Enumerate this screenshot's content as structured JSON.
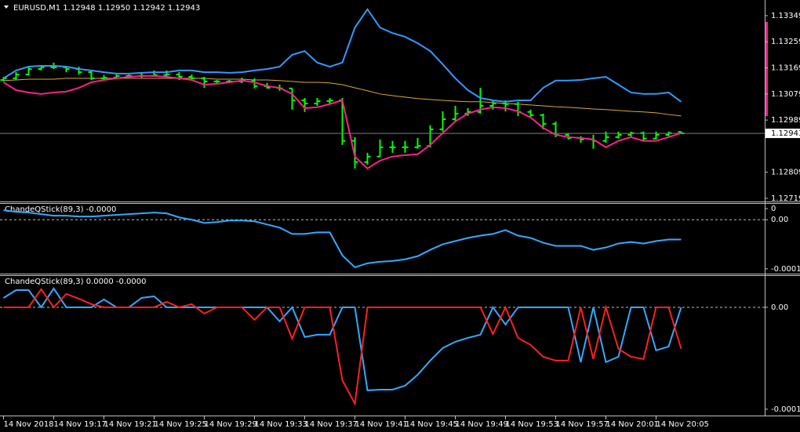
{
  "chart_data": [
    {
      "type": "ohlc",
      "title": "EURUSD,M1  1.12948 1.12950 1.12942 1.12943",
      "categories": [
        "14 Nov 2018",
        null,
        null,
        null,
        "14 Nov 19:17",
        null,
        null,
        null,
        "14 Nov 19:21",
        null,
        null,
        null,
        "14 Nov 19:25",
        null,
        null,
        null,
        "14 Nov 19:29",
        null,
        null,
        null,
        "14 Nov 19:33",
        null,
        null,
        null,
        "14 Nov 19:37",
        null,
        null,
        null,
        "14 Nov 19:41",
        null,
        null,
        null,
        "14 Nov 19:45",
        null,
        null,
        null,
        "14 Nov 19:49",
        null,
        null,
        null,
        "14 Nov 19:53",
        null,
        null,
        null,
        "14 Nov 19:57",
        null,
        null,
        null,
        "14 Nov 20:01",
        null,
        null,
        null,
        "14 Nov 20:05",
        null,
        null
      ],
      "open": [
        1.13127,
        1.13133,
        1.13146,
        1.13165,
        1.13171,
        1.13171,
        1.13165,
        1.13154,
        1.13133,
        1.13135,
        1.13141,
        1.13141,
        1.13141,
        1.13144,
        1.13146,
        1.13138,
        1.13133,
        1.13122,
        1.13122,
        1.13122,
        1.13125,
        1.13106,
        1.131,
        1.13098,
        1.13057,
        1.13046,
        1.13054,
        1.13057,
        1.12917,
        1.12844,
        1.12863,
        1.12895,
        1.12895,
        1.12895,
        1.129,
        1.12957,
        1.12992,
        1.13011,
        1.13017,
        1.13038,
        1.13046,
        1.13044,
        1.13017,
        1.13006,
        1.12976,
        1.12938,
        1.12927,
        1.12922,
        1.12917,
        1.1293,
        1.12938,
        1.12944,
        1.12925,
        1.12938,
        1.12948
      ],
      "high": [
        1.13138,
        1.13154,
        1.13173,
        1.13173,
        1.13187,
        1.13173,
        1.13173,
        1.1316,
        1.13144,
        1.13146,
        1.13146,
        1.13154,
        1.1316,
        1.1316,
        1.13154,
        1.13146,
        1.13138,
        1.13127,
        1.13127,
        1.13135,
        1.13133,
        1.13117,
        1.13111,
        1.13098,
        1.13065,
        1.13065,
        1.13065,
        1.13065,
        1.1293,
        1.12876,
        1.12922,
        1.12917,
        1.12917,
        1.12927,
        1.12971,
        1.13019,
        1.13038,
        1.1303,
        1.131,
        1.13057,
        1.13057,
        1.13052,
        1.13025,
        1.13011,
        1.12984,
        1.12944,
        1.12933,
        1.12938,
        1.12949,
        1.12949,
        1.12949,
        1.12949,
        1.12949,
        1.12949,
        1.1295
      ],
      "low": [
        1.13122,
        1.13127,
        1.13144,
        1.1316,
        1.13165,
        1.13154,
        1.13146,
        1.13127,
        1.13127,
        1.13133,
        1.13135,
        1.13135,
        1.13138,
        1.13138,
        1.13127,
        1.13125,
        1.131,
        1.13117,
        1.13117,
        1.13117,
        1.13098,
        1.13098,
        1.1309,
        1.13025,
        1.13017,
        1.13038,
        1.13044,
        1.12903,
        1.12822,
        1.12835,
        1.12863,
        1.12876,
        1.12876,
        1.1289,
        1.12895,
        1.12949,
        1.12984,
        1.13003,
        1.13011,
        1.13025,
        1.13019,
        1.13003,
        1.12998,
        1.12957,
        1.1293,
        1.12922,
        1.12911,
        1.1289,
        1.12911,
        1.12925,
        1.1293,
        1.12917,
        1.12922,
        1.12933,
        1.12942
      ],
      "close": [
        1.13133,
        1.13146,
        1.13165,
        1.13171,
        1.13171,
        1.13165,
        1.13154,
        1.13133,
        1.13135,
        1.13141,
        1.13141,
        1.13141,
        1.13144,
        1.13146,
        1.13138,
        1.13133,
        1.13122,
        1.13122,
        1.13122,
        1.13125,
        1.13106,
        1.131,
        1.13098,
        1.13057,
        1.13046,
        1.13054,
        1.13057,
        1.12917,
        1.12844,
        1.12863,
        1.12895,
        1.12895,
        1.12895,
        1.129,
        1.12957,
        1.12992,
        1.13011,
        1.13017,
        1.13038,
        1.13046,
        1.13044,
        1.13017,
        1.13006,
        1.12976,
        1.12938,
        1.12927,
        1.12922,
        1.12917,
        1.1293,
        1.12938,
        1.12944,
        1.12925,
        1.12938,
        1.12944,
        1.12943
      ],
      "color": "#00ff00",
      "series": [
        {
          "color": "#d9a93a",
          "values": [
            1.13125,
            1.13127,
            1.1313,
            1.1313,
            1.1313,
            1.13133,
            1.13133,
            1.13133,
            1.13133,
            1.13133,
            1.13133,
            1.13133,
            1.13133,
            1.13133,
            1.13133,
            1.13133,
            1.13133,
            1.1313,
            1.1313,
            1.1313,
            1.13127,
            1.13127,
            1.13125,
            1.13122,
            1.13119,
            1.13119,
            1.13117,
            1.13111,
            1.131,
            1.1309,
            1.13079,
            1.13073,
            1.13068,
            1.13063,
            1.1306,
            1.13057,
            1.13054,
            1.13052,
            1.13052,
            1.13049,
            1.13046,
            1.13044,
            1.13041,
            1.13038,
            1.13035,
            1.13033,
            1.1303,
            1.13027,
            1.13025,
            1.13022,
            1.13019,
            1.13017,
            1.13014,
            1.13008,
            1.13003
          ]
        },
        {
          "color": "#3399ff",
          "values": [
            1.13133,
            1.1316,
            1.13173,
            1.13176,
            1.13176,
            1.13173,
            1.13165,
            1.1316,
            1.13154,
            1.13149,
            1.13149,
            1.13152,
            1.13154,
            1.13154,
            1.1316,
            1.1316,
            1.13154,
            1.13154,
            1.13152,
            1.13154,
            1.1316,
            1.13165,
            1.13173,
            1.13214,
            1.13227,
            1.13187,
            1.13173,
            1.13187,
            1.13308,
            1.13371,
            1.13308,
            1.13289,
            1.13276,
            1.13254,
            1.13227,
            1.13181,
            1.13133,
            1.13092,
            1.13065,
            1.13057,
            1.13052,
            1.13057,
            1.13057,
            1.131,
            1.13125,
            1.13125,
            1.13127,
            1.13133,
            1.13138,
            1.13111,
            1.13084,
            1.13079,
            1.13079,
            1.13084,
            1.13052
          ]
        },
        {
          "color": "#ff1f8f",
          "values": [
            1.13119,
            1.13092,
            1.13084,
            1.13079,
            1.13084,
            1.13087,
            1.131,
            1.13119,
            1.13127,
            1.13133,
            1.13138,
            1.13141,
            1.13141,
            1.13138,
            1.13133,
            1.13127,
            1.13111,
            1.13114,
            1.13119,
            1.13125,
            1.13119,
            1.13106,
            1.131,
            1.13079,
            1.1303,
            1.13033,
            1.13044,
            1.13057,
            1.12863,
            1.12822,
            1.12849,
            1.12863,
            1.12868,
            1.12871,
            1.12903,
            1.12944,
            1.12984,
            1.13011,
            1.13025,
            1.13033,
            1.1303,
            1.13019,
            1.12998,
            1.12962,
            1.12938,
            1.1293,
            1.12927,
            1.12922,
            1.12895,
            1.12917,
            1.1293,
            1.12917,
            1.12917,
            1.1293,
            1.12944
          ]
        }
      ],
      "last_price": 1.12943,
      "ylim": [
        1.12708,
        1.13403
      ],
      "yticks": [
        1.13349,
        1.13259,
        1.13169,
        1.13079,
        1.12989,
        1.12809,
        1.12719
      ]
    },
    {
      "type": "line",
      "title": "ChandeQStick(89,3) -0.0000",
      "series": [
        {
          "color": "#33aaff",
          "values": [
            1.94e-05,
            1.61e-05,
            1.45e-05,
            1.13e-05,
            8.1e-06,
            8.1e-06,
            6.5e-06,
            6.5e-06,
            8.1e-06,
            9.7e-06,
            1.13e-05,
            1.29e-05,
            1.45e-05,
            1.29e-05,
            4.8e-06,
            0,
            -6.5e-06,
            -4.8e-06,
            -1.6e-06,
            -1.6e-06,
            -3.2e-06,
            -9.7e-06,
            -1.61e-05,
            -2.9e-05,
            -2.9e-05,
            -2.58e-05,
            -2.58e-05,
            -7.26e-05,
            -9.68e-05,
            -8.87e-05,
            -8.55e-05,
            -8.39e-05,
            -8.06e-05,
            -7.42e-05,
            -6.13e-05,
            -5e-05,
            -4.35e-05,
            -3.71e-05,
            -3.23e-05,
            -2.9e-05,
            -2.1e-05,
            -3.23e-05,
            -3.71e-05,
            -4.68e-05,
            -5.32e-05,
            -5.32e-05,
            -5.32e-05,
            -6.13e-05,
            -5.65e-05,
            -4.84e-05,
            -4.52e-05,
            -4.84e-05,
            -4.35e-05,
            -4.03e-05,
            -4.03e-05
          ]
        }
      ],
      "ylim": [
        -0.0001097,
        3.39e-05
      ],
      "yticks": [
        {
          "value": 2.26e-05,
          "label": "0"
        },
        {
          "value": 0,
          "label": "0.00"
        },
        -0.0001
      ]
    },
    {
      "type": "line",
      "title": "ChandeQStick(89,3) 0.0000 -0.0000",
      "series": [
        {
          "color": "#33aaff",
          "values": [
            9.2e-06,
            1.69e-05,
            1.69e-05,
            0,
            1.85e-05,
            0,
            0,
            0,
            7.7e-06,
            0,
            0,
            9.2e-06,
            1.08e-05,
            0,
            0,
            0,
            0,
            0,
            0,
            0,
            0,
            0,
            -1.38e-05,
            0,
            -2.92e-05,
            -2.69e-05,
            -2.69e-05,
            0,
            0,
            -8.15e-05,
            -8.08e-05,
            -8.08e-05,
            -7.69e-05,
            -6.62e-05,
            -5.23e-05,
            -4e-05,
            -3.38e-05,
            -3e-05,
            -2.69e-05,
            0,
            -1.69e-05,
            0,
            0,
            0,
            0,
            0,
            -5.38e-05,
            0,
            -5.38e-05,
            -4.85e-05,
            0,
            0,
            -4.23e-05,
            -3.85e-05,
            0
          ]
        },
        {
          "color": "#ff2020",
          "values": [
            0,
            0,
            0,
            1.77e-05,
            0,
            1.31e-05,
            8.5e-06,
            3.1e-06,
            0,
            0,
            0,
            0,
            0,
            5.4e-06,
            0,
            3.1e-06,
            -6.2e-06,
            0,
            0,
            0,
            -1.23e-05,
            0,
            0,
            -3.08e-05,
            0,
            0,
            0,
            -7.15e-05,
            -9.46e-05,
            0,
            0,
            0,
            0,
            0,
            0,
            0,
            0,
            0,
            0,
            -2.62e-05,
            0,
            -3e-05,
            -3.69e-05,
            -4.85e-05,
            -5.23e-05,
            -5.23e-05,
            0,
            -5.08e-05,
            0,
            -4.08e-05,
            -4.85e-05,
            -5.08e-05,
            0,
            0,
            -4.08e-05
          ]
        }
      ],
      "ylim": [
        -0.0001062,
        3.15e-05
      ],
      "yticks": [
        {
          "value": 0,
          "label": "0.00"
        },
        -0.0001
      ]
    }
  ]
}
